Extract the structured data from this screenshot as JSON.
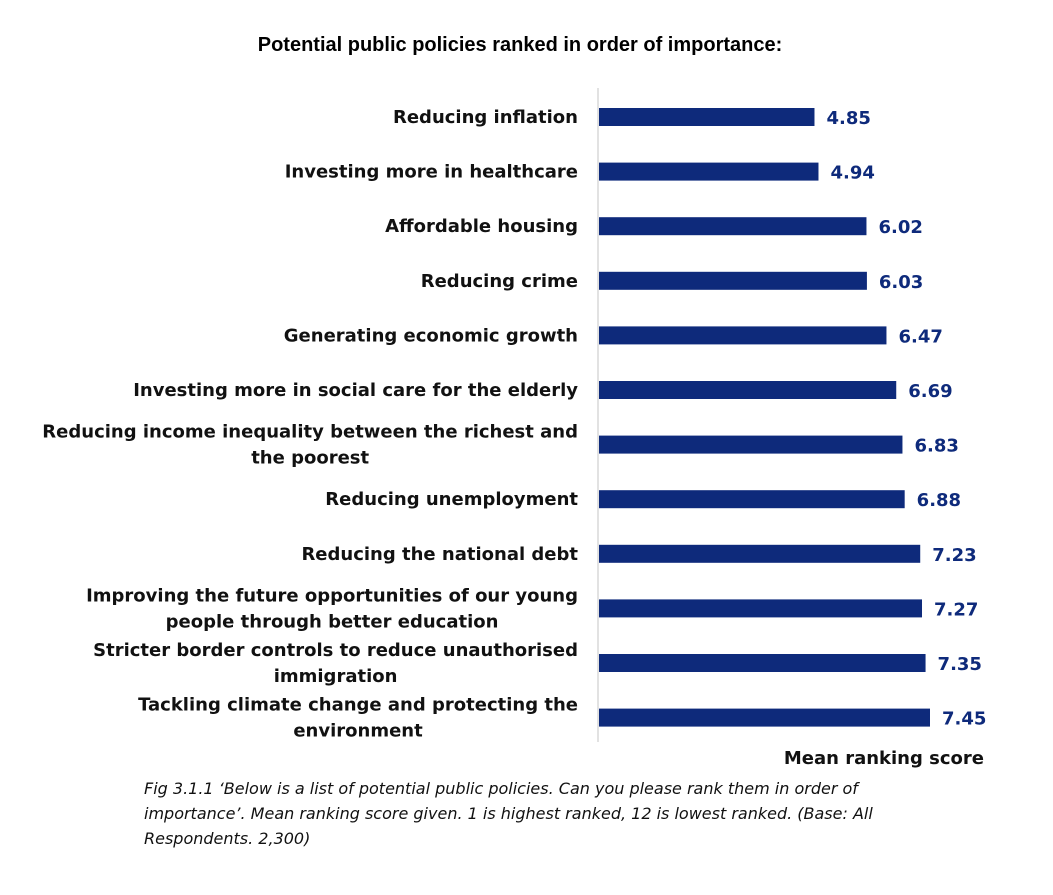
{
  "title": "Potential public policies ranked in order of importance:",
  "axis_title": "Mean ranking score",
  "caption": "Fig 3.1.1 ‘Below is a list of potential public policies. Can you please rank them in order of importance’. Mean ranking score given. 1 is highest ranked, 12 is lowest ranked. (Base: All Respondents. 2,300)",
  "colors": {
    "bar": "#0e2a7b",
    "axis": "#d9d9d9"
  },
  "chart_data": {
    "type": "bar",
    "orientation": "horizontal",
    "categories": [
      [
        "Reducing inflation"
      ],
      [
        "Investing more in healthcare"
      ],
      [
        "Affordable housing"
      ],
      [
        "Reducing crime"
      ],
      [
        "Generating economic growth"
      ],
      [
        "Investing more in social care for the elderly"
      ],
      [
        "Reducing income inequality between the richest and",
        "the poorest"
      ],
      [
        "Reducing unemployment"
      ],
      [
        "Reducing the national debt"
      ],
      [
        "Improving the future opportunities of our young",
        "people through better education"
      ],
      [
        "Stricter border controls to reduce unauthorised",
        "immigration"
      ],
      [
        "Tackling climate change and protecting the",
        "environment"
      ]
    ],
    "values": [
      4.85,
      4.94,
      6.02,
      6.03,
      6.47,
      6.69,
      6.83,
      6.88,
      7.23,
      7.27,
      7.35,
      7.45
    ],
    "value_labels": [
      "4.85",
      "4.94",
      "6.02",
      "6.03",
      "6.47",
      "6.69",
      "6.83",
      "6.88",
      "7.23",
      "7.27",
      "7.35",
      "7.45"
    ],
    "xlim": [
      0,
      9.5
    ],
    "xlabel": "Mean ranking score",
    "grid": false,
    "legend": "none"
  }
}
